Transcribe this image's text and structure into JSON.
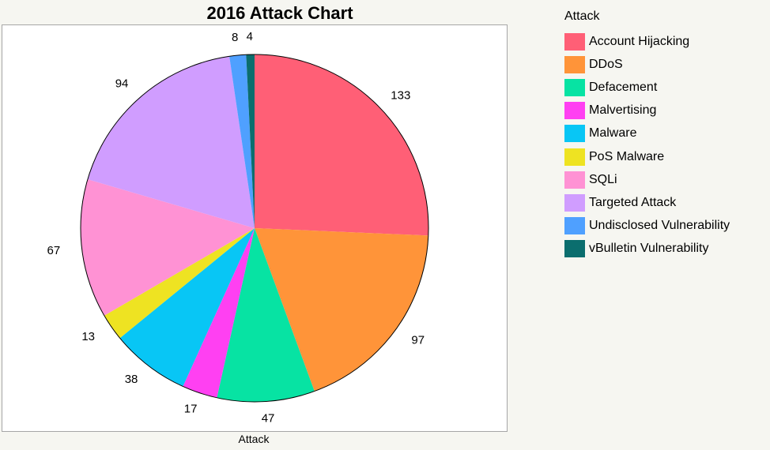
{
  "chart_data": {
    "type": "pie",
    "title": "2016 Attack Chart",
    "xlabel": "Attack",
    "legend": {
      "title": "Attack",
      "placement": "right"
    },
    "categories": [
      "Account Hijacking",
      "DDoS",
      "Defacement",
      "Malvertising",
      "Malware",
      "PoS Malware",
      "SQLi",
      "Targeted Attack",
      "Undisclosed Vulnerability",
      "vBulletin Vulnerability"
    ],
    "values": [
      133,
      97,
      47,
      17,
      38,
      13,
      67,
      94,
      8,
      4
    ],
    "colors": [
      "#ff5f76",
      "#ff9439",
      "#07e3a3",
      "#ff40f2",
      "#08c6f5",
      "#eee322",
      "#ff92d4",
      "#d09dff",
      "#4fa0ff",
      "#0b6e6e"
    ],
    "start_angle_deg": 0,
    "direction": "clockwise",
    "data_labels": true
  }
}
